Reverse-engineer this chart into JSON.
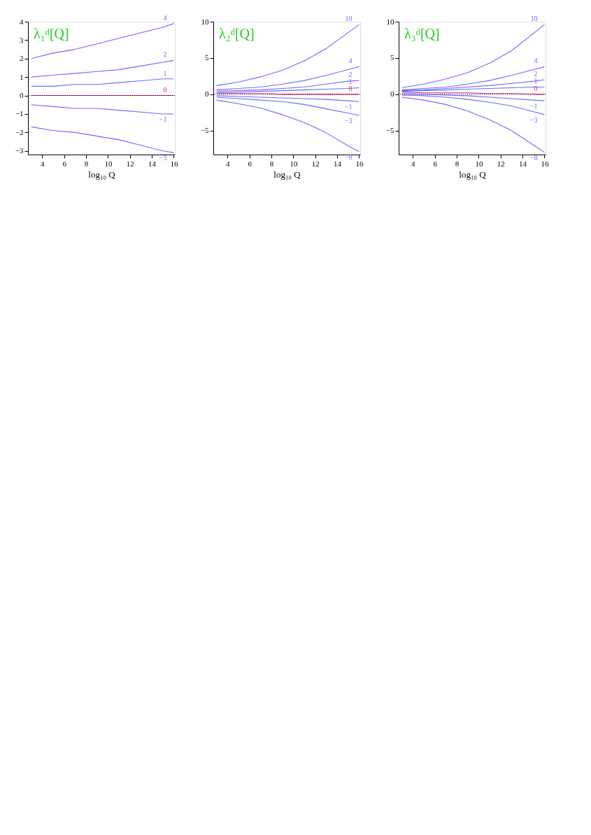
{
  "chart_data": [
    {
      "type": "line",
      "title": "λ₁ᵈ[Q]",
      "xlabel": "log₁₀ Q",
      "x": [
        3,
        5,
        7,
        9,
        11,
        13,
        15,
        16
      ],
      "xlim": [
        2.7,
        16.1
      ],
      "xticks": [
        4,
        6,
        8,
        10,
        12,
        14,
        16
      ],
      "ylim": [
        -3.2,
        4
      ],
      "yticks": [
        -3,
        -2,
        -1,
        0,
        1,
        2,
        3,
        4
      ],
      "grid": false,
      "legend": false,
      "line_style": "solid",
      "marker": "none",
      "ref_lines": [
        {
          "axis": "y",
          "value": 0,
          "color": "#000000",
          "line_style": "dotted"
        }
      ],
      "series": [
        {
          "name": "4",
          "color": "#6a6aff",
          "values": [
            2.0,
            2.3,
            2.5,
            2.8,
            3.1,
            3.4,
            3.7,
            3.9
          ]
        },
        {
          "name": "2",
          "color": "#6a6aff",
          "values": [
            1.0,
            1.1,
            1.2,
            1.3,
            1.4,
            1.6,
            1.8,
            1.9
          ]
        },
        {
          "name": "1",
          "color": "#6a6aff",
          "values": [
            0.5,
            0.5,
            0.6,
            0.6,
            0.7,
            0.8,
            0.9,
            0.9
          ]
        },
        {
          "name": "0",
          "color": "#e0207a",
          "values": [
            0,
            0,
            0,
            0,
            0,
            0,
            0,
            0
          ]
        },
        {
          "name": "−1",
          "color": "#6a6aff",
          "values": [
            -0.5,
            -0.6,
            -0.7,
            -0.7,
            -0.8,
            -0.9,
            -1.0,
            -1.0
          ]
        },
        {
          "name": "−3",
          "color": "#6a6aff",
          "values": [
            -1.7,
            -1.9,
            -2.0,
            -2.2,
            -2.4,
            -2.7,
            -3.0,
            -3.1
          ]
        }
      ]
    },
    {
      "type": "line",
      "title": "λ₂ᵈ[Q]",
      "xlabel": "log₁₀ Q",
      "x": [
        3,
        5,
        7,
        9,
        11,
        13,
        15,
        16
      ],
      "xlim": [
        2.7,
        16.1
      ],
      "xticks": [
        4,
        6,
        8,
        10,
        12,
        14,
        16
      ],
      "ylim": [
        -8.3,
        10
      ],
      "yticks": [
        -5,
        0,
        5,
        10
      ],
      "grid": false,
      "legend": false,
      "line_style": "solid",
      "marker": "none",
      "ref_lines": [
        {
          "axis": "y",
          "value": 0,
          "color": "#000000",
          "line_style": "dotted"
        }
      ],
      "series": [
        {
          "name": "10",
          "color": "#6a6aff",
          "values": [
            1.2,
            1.7,
            2.4,
            3.3,
            4.6,
            6.3,
            8.5,
            9.6
          ]
        },
        {
          "name": "4",
          "color": "#6a6aff",
          "values": [
            0.6,
            0.8,
            1.0,
            1.4,
            1.9,
            2.6,
            3.4,
            3.8
          ]
        },
        {
          "name": "2",
          "color": "#6a6aff",
          "values": [
            0.4,
            0.5,
            0.6,
            0.8,
            1.0,
            1.4,
            1.8,
            1.9
          ]
        },
        {
          "name": "1",
          "color": "#6a6aff",
          "values": [
            0.2,
            0.3,
            0.4,
            0.5,
            0.6,
            0.7,
            0.8,
            0.9
          ]
        },
        {
          "name": "0",
          "color": "#e0207a",
          "values": [
            0.1,
            0.1,
            0.1,
            0,
            0,
            0,
            0,
            0
          ]
        },
        {
          "name": "−1",
          "color": "#6a6aff",
          "values": [
            -0.2,
            -0.3,
            -0.4,
            -0.5,
            -0.6,
            -0.7,
            -0.9,
            -1.0
          ]
        },
        {
          "name": "−3",
          "color": "#6a6aff",
          "values": [
            -0.4,
            -0.6,
            -0.8,
            -1.0,
            -1.4,
            -2.0,
            -2.6,
            -2.9
          ]
        },
        {
          "name": "−8",
          "color": "#6a6aff",
          "values": [
            -0.8,
            -1.3,
            -1.9,
            -2.8,
            -3.9,
            -5.3,
            -7.1,
            -7.9
          ]
        }
      ]
    },
    {
      "type": "line",
      "title": "λ₃ᵈ[Q]",
      "xlabel": "log₁₀ Q",
      "x": [
        3,
        5,
        7,
        9,
        11,
        13,
        15,
        16
      ],
      "xlim": [
        2.7,
        16.1
      ],
      "xticks": [
        4,
        6,
        8,
        10,
        12,
        14,
        16
      ],
      "ylim": [
        -8.3,
        10
      ],
      "yticks": [
        -5,
        0,
        5,
        10
      ],
      "grid": false,
      "legend": false,
      "line_style": "solid",
      "marker": "none",
      "ref_lines": [
        {
          "axis": "y",
          "value": 0,
          "color": "#000000",
          "line_style": "dotted"
        }
      ],
      "series": [
        {
          "name": "10",
          "color": "#6a6aff",
          "values": [
            0.9,
            1.4,
            2.1,
            3.0,
            4.3,
            6.0,
            8.4,
            9.6
          ]
        },
        {
          "name": "4",
          "color": "#6a6aff",
          "values": [
            0.6,
            0.8,
            1.0,
            1.4,
            1.9,
            2.6,
            3.4,
            3.8
          ]
        },
        {
          "name": "2",
          "color": "#6a6aff",
          "values": [
            0.5,
            0.6,
            0.8,
            1.0,
            1.2,
            1.5,
            1.8,
            2.0
          ]
        },
        {
          "name": "1",
          "color": "#6a6aff",
          "values": [
            0.4,
            0.5,
            0.6,
            0.7,
            0.8,
            0.9,
            1.0,
            1.0
          ]
        },
        {
          "name": "0",
          "color": "#e0207a",
          "values": [
            0.3,
            0.2,
            0.2,
            0.2,
            0.1,
            0.1,
            0,
            0
          ]
        },
        {
          "name": "−1",
          "color": "#6a6aff",
          "values": [
            0.1,
            0,
            -0.1,
            -0.2,
            -0.4,
            -0.6,
            -0.8,
            -0.9
          ]
        },
        {
          "name": "−3",
          "color": "#6a6aff",
          "values": [
            -0.1,
            -0.2,
            -0.4,
            -0.7,
            -1.1,
            -1.6,
            -2.4,
            -2.8
          ]
        },
        {
          "name": "−8",
          "color": "#6a6aff",
          "values": [
            -0.4,
            -0.8,
            -1.4,
            -2.3,
            -3.5,
            -5.0,
            -7.0,
            -8.0
          ]
        }
      ]
    }
  ]
}
